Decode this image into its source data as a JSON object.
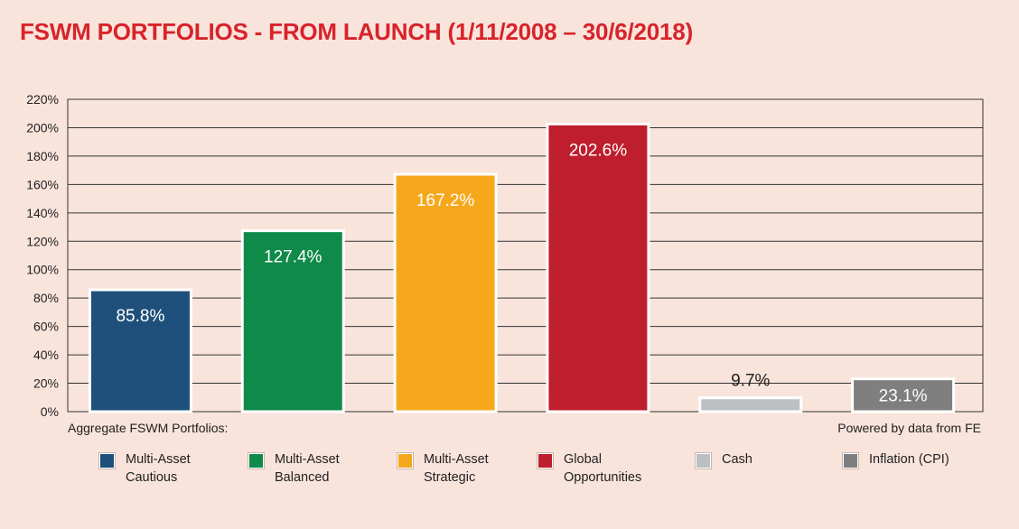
{
  "chart_data": {
    "type": "bar",
    "title": "FSWM PORTFOLIOS - FROM LAUNCH (1/11/2008 – 30/6/2018)",
    "categories": [
      "Multi-Asset Cautious",
      "Multi-Asset Balanced",
      "Multi-Asset Strategic",
      "Global Opportunities",
      "Cash",
      "Inflation (CPI)"
    ],
    "values": [
      85.8,
      127.4,
      167.2,
      202.6,
      9.7,
      23.1
    ],
    "value_labels": [
      "85.8%",
      "127.4%",
      "167.2%",
      "202.6%",
      "9.7%",
      "23.1%"
    ],
    "colors": [
      "#1f507b",
      "#0f8a48",
      "#f6a81c",
      "#be1e2d",
      "#bdc0c3",
      "#7f7f80"
    ],
    "yticks": [
      "0%",
      "20%",
      "40%",
      "60%",
      "80%",
      "100%",
      "120%",
      "140%",
      "160%",
      "180%",
      "200%",
      "220%"
    ],
    "ylim": [
      0,
      220
    ],
    "ystep": 20,
    "grid": true,
    "legend": {
      "placement": "bottom",
      "items": [
        {
          "lines": [
            "Multi-Asset",
            "Cautious"
          ],
          "color": "#1f507b"
        },
        {
          "lines": [
            "Multi-Asset",
            "Balanced"
          ],
          "color": "#0f8a48"
        },
        {
          "lines": [
            "Multi-Asset",
            "Strategic"
          ],
          "color": "#f6a81c"
        },
        {
          "lines": [
            "Global",
            "Opportunities"
          ],
          "color": "#be1e2d"
        },
        {
          "lines": [
            "Cash"
          ],
          "color": "#bdc0c3"
        },
        {
          "lines": [
            "Inflation (CPI)"
          ],
          "color": "#7f7f80"
        }
      ]
    },
    "left_note": "Aggregate FSWM Portfolios:",
    "right_note": "Powered by data from FE"
  }
}
